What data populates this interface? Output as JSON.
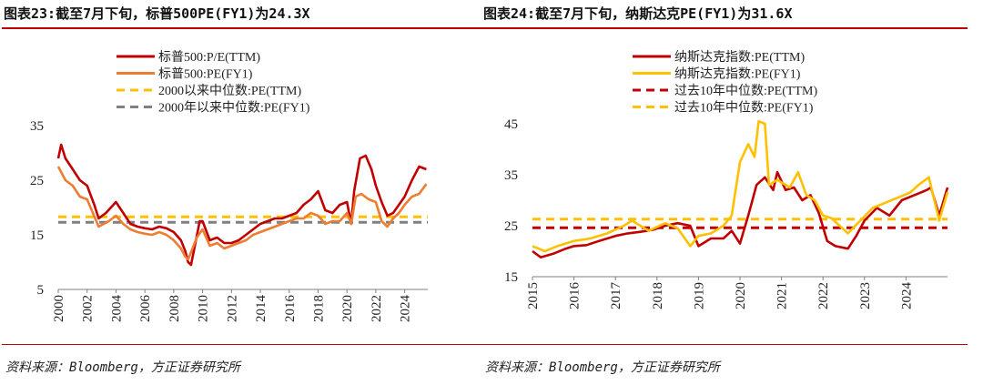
{
  "panels": [
    {
      "title": "图表23:截至7月下旬，标普500PE(FY1)为24.3X",
      "source": "资料来源：Bloomberg，方正证券研究所"
    },
    {
      "title": "图表24:截至7月下旬，纳斯达克PE(FY1)为31.6X",
      "source": "资料来源：Bloomberg，方正证券研究所"
    }
  ],
  "chart_data": [
    {
      "type": "line",
      "ylim": [
        5,
        35
      ],
      "yticks": [
        5,
        15,
        25,
        35
      ],
      "xlim": [
        2000,
        2025.6
      ],
      "xticks": [
        2000,
        2002,
        2004,
        2006,
        2008,
        2010,
        2012,
        2014,
        2016,
        2018,
        2020,
        2022,
        2024
      ],
      "legend_position": "top-center",
      "series": [
        {
          "name": "标普500:P/E(TTM)",
          "color": "#c00000",
          "style": "solid",
          "x": [
            2000,
            2000.2,
            2000.5,
            2001,
            2001.5,
            2002,
            2002.5,
            2002.8,
            2003.3,
            2004,
            2004.5,
            2005,
            2005.5,
            2006,
            2006.5,
            2007,
            2007.5,
            2008,
            2008.5,
            2008.8,
            2009,
            2009.2,
            2009.5,
            2009.8,
            2010,
            2010.5,
            2011,
            2011.5,
            2012,
            2012.5,
            2013,
            2013.5,
            2014,
            2014.5,
            2015,
            2015.5,
            2016,
            2016.5,
            2017,
            2017.5,
            2018,
            2018.5,
            2019,
            2019.5,
            2020,
            2020.3,
            2020.5,
            2020.9,
            2021.3,
            2021.7,
            2022,
            2022.4,
            2022.8,
            2023.2,
            2023.6,
            2024,
            2024.5,
            2025,
            2025.5
          ],
          "y": [
            29,
            31.5,
            29,
            27,
            25,
            24,
            20.5,
            18,
            19,
            21,
            19,
            17,
            16.5,
            16.2,
            16,
            16.5,
            16.2,
            15.5,
            14,
            12,
            10,
            9.5,
            13.5,
            17.5,
            17.5,
            14,
            14.5,
            13.5,
            13.5,
            14,
            15,
            16,
            17,
            17.5,
            18,
            18,
            18.5,
            19,
            20.5,
            21.5,
            23,
            19.5,
            19,
            20.5,
            21,
            17,
            23,
            29,
            29.5,
            27,
            24,
            21,
            18.5,
            19,
            20.5,
            22,
            25,
            27.5,
            27
          ]
        },
        {
          "name": "标普500:PE(FY1)",
          "color": "#ed7d31",
          "style": "solid",
          "x": [
            2000,
            2000.5,
            2001,
            2001.5,
            2002,
            2002.8,
            2003.5,
            2004,
            2004.5,
            2005,
            2005.5,
            2006,
            2006.5,
            2007,
            2007.5,
            2008,
            2008.5,
            2008.8,
            2009,
            2009.3,
            2009.6,
            2010,
            2010.5,
            2011,
            2011.5,
            2012,
            2012.5,
            2013,
            2013.5,
            2014,
            2014.5,
            2015,
            2015.5,
            2016,
            2016.5,
            2017,
            2017.5,
            2018,
            2018.5,
            2019,
            2019.5,
            2020,
            2020.3,
            2020.6,
            2021,
            2021.5,
            2022,
            2022.4,
            2022.8,
            2023.2,
            2023.6,
            2024,
            2024.5,
            2025,
            2025.5
          ],
          "y": [
            27.5,
            25,
            24,
            22,
            21.5,
            16.5,
            17.5,
            18.5,
            17,
            16,
            15.5,
            15.2,
            15,
            15.5,
            15,
            14,
            12.5,
            11,
            10.5,
            12.5,
            14.5,
            16,
            13,
            13.5,
            12.5,
            13,
            13.5,
            14,
            15,
            15.5,
            16,
            16.5,
            17,
            17.5,
            18,
            18,
            19,
            18.5,
            17,
            17.5,
            17.5,
            19,
            17,
            22,
            22.5,
            21.5,
            21,
            17.5,
            16.5,
            18,
            19,
            20.5,
            22,
            22.5,
            24.3
          ]
        },
        {
          "name": "2000以来中位数:PE(TTM)",
          "color": "#ffc000",
          "style": "dashed",
          "x": [
            2000,
            2025.6
          ],
          "y": [
            18.3,
            18.3
          ]
        },
        {
          "name": "2000年以来中位数:PE(FY1)",
          "color": "#808080",
          "style": "dashed",
          "x": [
            2000,
            2025.6
          ],
          "y": [
            17.3,
            17.3
          ]
        }
      ]
    },
    {
      "type": "line",
      "ylim": [
        15,
        45
      ],
      "yticks": [
        15,
        25,
        35,
        45
      ],
      "xlim": [
        2015,
        2025.0
      ],
      "xticks": [
        2015,
        2016,
        2017,
        2018,
        2019,
        2020,
        2021,
        2022,
        2023,
        2024
      ],
      "legend_position": "top-center",
      "series": [
        {
          "name": "纳斯达克指数:PE(TTM)",
          "color": "#c00000",
          "style": "solid",
          "x": [
            2015,
            2015.2,
            2015.5,
            2015.8,
            2016,
            2016.3,
            2016.6,
            2017,
            2017.3,
            2017.6,
            2017.9,
            2018.2,
            2018.5,
            2018.8,
            2019,
            2019.3,
            2019.6,
            2019.8,
            2020,
            2020.2,
            2020.4,
            2020.6,
            2020.8,
            2020.9,
            2021.1,
            2021.3,
            2021.5,
            2021.7,
            2021.9,
            2022.1,
            2022.3,
            2022.6,
            2022.8,
            2023,
            2023.3,
            2023.6,
            2023.9,
            2024.2,
            2024.5,
            2024.6,
            2024.8,
            2025.0
          ],
          "y": [
            20,
            18.8,
            19.5,
            20.5,
            21,
            21.2,
            22,
            23,
            23.5,
            23.8,
            24.2,
            25,
            25.5,
            25,
            21,
            22.5,
            22.5,
            24,
            21.5,
            27,
            33,
            34.5,
            32,
            35.5,
            32,
            32.5,
            30,
            31,
            27.5,
            22,
            21,
            20.5,
            23,
            26,
            28.5,
            27,
            30,
            31,
            32,
            32.5,
            27,
            32.5
          ]
        },
        {
          "name": "纳斯达克指数:PE(FY1)",
          "color": "#ffc000",
          "style": "solid",
          "x": [
            2015,
            2015.3,
            2015.6,
            2016,
            2016.4,
            2016.8,
            2017.2,
            2017.4,
            2017.8,
            2018.2,
            2018.5,
            2018.8,
            2019,
            2019.3,
            2019.6,
            2019.8,
            2020,
            2020.2,
            2020.35,
            2020.45,
            2020.6,
            2020.7,
            2020.9,
            2021.2,
            2021.4,
            2021.6,
            2021.8,
            2022,
            2022.2,
            2022.6,
            2022.9,
            2023.2,
            2023.5,
            2023.8,
            2024.1,
            2024.3,
            2024.55,
            2024.8,
            2025.0
          ],
          "y": [
            21,
            20,
            21,
            22,
            22.5,
            23.5,
            25,
            26,
            24,
            25.5,
            24.5,
            21,
            23,
            23.5,
            25,
            27,
            37.5,
            41,
            38.5,
            45.5,
            45,
            33,
            34,
            32.5,
            35.5,
            31,
            30,
            27,
            26.5,
            23.5,
            26,
            28.5,
            29.5,
            30.5,
            31.5,
            33,
            34.5,
            26,
            31.6
          ]
        },
        {
          "name": "过去10年中位数:PE(TTM)",
          "color": "#c00000",
          "style": "dashed",
          "x": [
            2015,
            2025.0
          ],
          "y": [
            24.6,
            24.6
          ]
        },
        {
          "name": "过去10年中位数:PE(FY1)",
          "color": "#ffc000",
          "style": "dashed",
          "x": [
            2015,
            2025.0
          ],
          "y": [
            26.3,
            26.3
          ]
        }
      ]
    }
  ]
}
